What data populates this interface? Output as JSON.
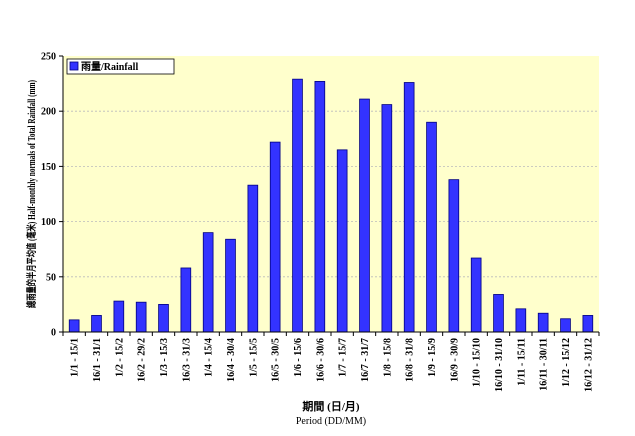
{
  "chart_data": {
    "type": "bar",
    "legend": "雨量/Rainfall",
    "legend_position": "top-left",
    "ylabel": "總雨量的半月平均值 (毫米) Half-monthly normals of Total Rainfall (mm)",
    "xlabel_line1": "期間 (日/月)",
    "xlabel_line2": "Period (DD/MM)",
    "ylim": [
      0,
      250
    ],
    "yticks": [
      "0",
      "50",
      "100",
      "150",
      "200",
      "250"
    ],
    "grid": true,
    "categories": [
      "1/1 - 15/1",
      "16/1 - 31/1",
      "1/2 - 15/2",
      "16/2 - 29/2",
      "1/3 - 15/3",
      "16/3 - 31/3",
      "1/4 - 15/4",
      "16/4 - 30/4",
      "1/5 - 15/5",
      "16/5 - 30/5",
      "1/6 - 15/6",
      "16/6 - 30/6",
      "1/7 - 15/7",
      "16/7 - 31/7",
      "1/8 - 15/8",
      "16/8 - 31/8",
      "1/9 - 15/9",
      "16/9 - 30/9",
      "1/10 - 15/10",
      "16/10 - 31/10",
      "1/11 - 15/11",
      "16/11 - 30/11",
      "1/12 - 15/12",
      "16/12 - 31/12"
    ],
    "values": [
      11,
      15,
      28,
      27,
      25,
      58,
      90,
      84,
      133,
      172,
      229,
      227,
      165,
      211,
      206,
      226,
      190,
      138,
      67,
      34,
      21,
      17,
      12,
      15
    ],
    "colors": {
      "plot_bg": "#ffffcc",
      "bar_fill": "#3333ff",
      "bar_stroke": "#000080",
      "grid": "#bbbbbb"
    }
  }
}
